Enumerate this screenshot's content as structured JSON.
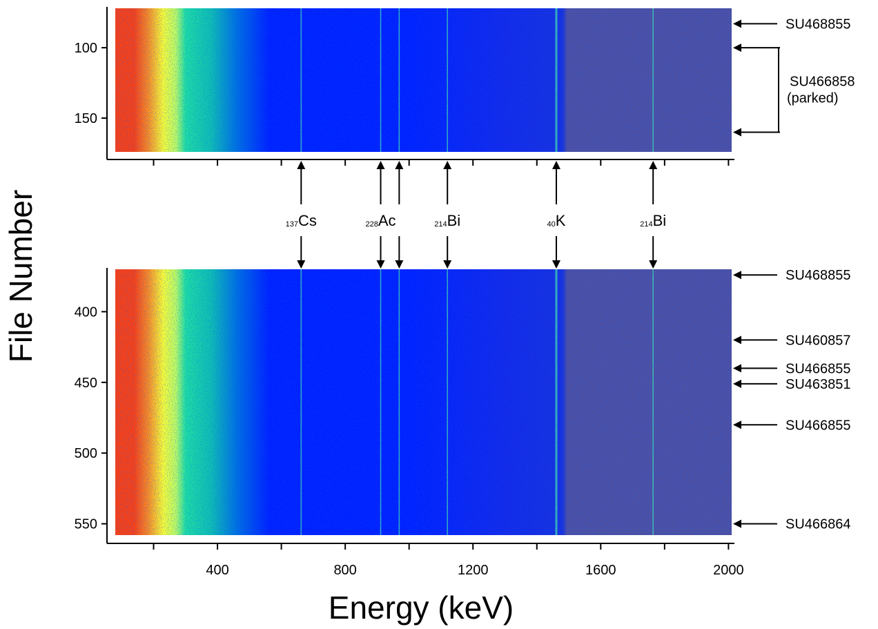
{
  "chart_data": {
    "type": "heatmap",
    "xlabel": "Energy (keV)",
    "ylabel": "File Number",
    "xlim": [
      80,
      2010
    ],
    "x_ticks": [
      400,
      800,
      1200,
      1600,
      2000
    ],
    "x_minor_ticks": [
      200,
      400,
      600,
      800,
      1000,
      1200,
      1400,
      1600,
      1800,
      2000
    ],
    "colormap": [
      "#5050a0",
      "#0020ff",
      "#20e0a0",
      "#ffff30",
      "#ff4010"
    ],
    "panels": [
      {
        "name": "top",
        "ylim": [
          72,
          174
        ],
        "y_ticks": [
          100,
          150
        ],
        "annotations": [
          {
            "label": "SU468855",
            "file": 83
          },
          {
            "label": "SU466858",
            "sublabel": "(parked)",
            "file_start": 100,
            "file_end": 160
          }
        ]
      },
      {
        "name": "bottom",
        "ylim": [
          370,
          558
        ],
        "y_ticks": [
          400,
          450,
          500,
          550
        ],
        "annotations": [
          {
            "label": "SU468855",
            "file": 374
          },
          {
            "label": "SU460857",
            "file": 420
          },
          {
            "label": "SU466855",
            "file": 440
          },
          {
            "label": "SU463851",
            "file": 451
          },
          {
            "label": "SU466855",
            "file": 480
          },
          {
            "label": "SU466864",
            "file": 550
          }
        ]
      }
    ],
    "peaks": [
      {
        "mass": "137",
        "element": "Cs",
        "energy": 662
      },
      {
        "mass": "228",
        "element": "Ac",
        "energy": 911
      },
      {
        "mass": "",
        "element": "",
        "energy": 969
      },
      {
        "mass": "214",
        "element": "Bi",
        "energy": 1120
      },
      {
        "mass": "40",
        "element": "K",
        "energy": 1461
      },
      {
        "mass": "214",
        "element": "Bi",
        "energy": 1764
      }
    ]
  }
}
